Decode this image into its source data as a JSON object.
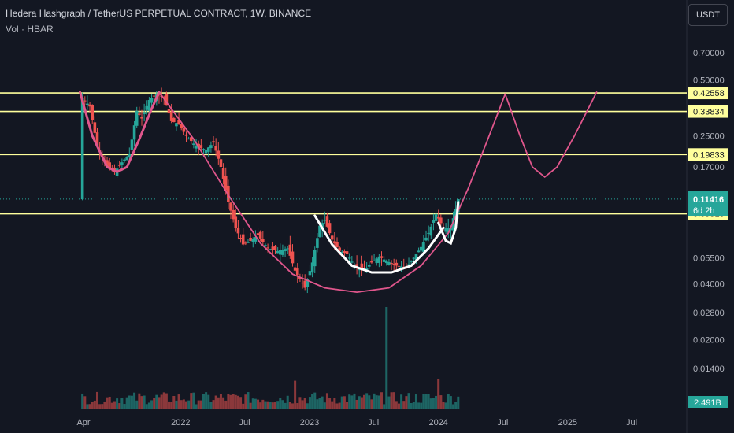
{
  "header": {
    "title": "Hedera Hashgraph / TetherUS PERPETUAL CONTRACT, 1W, BINANCE",
    "volume_label": "Vol · HBAR"
  },
  "currency_button": "USDT",
  "colors": {
    "background": "#131722",
    "up": "#26a69a",
    "down": "#ef5350",
    "level_line": "#ffff9c",
    "curve_pink": "#e0568c",
    "curve_white": "#ffffff"
  },
  "chart_data": {
    "type": "candlestick",
    "scale": "log",
    "ylim": [
      0.0115,
      0.86
    ],
    "y_ticks": [
      "0.70000",
      "0.50000",
      "0.25000",
      "0.17000",
      "0.05500",
      "0.04000",
      "0.02800",
      "0.02000",
      "0.01400"
    ],
    "x_ticks": [
      "Apr",
      "2022",
      "Jul",
      "2023",
      "Jul",
      "2024",
      "Jul",
      "2025",
      "Jul"
    ],
    "x_tick_dates": [
      "2021-04",
      "2022-01",
      "2022-07",
      "2023-01",
      "2023-07",
      "2024-01",
      "2024-07",
      "2025-01",
      "2025-07"
    ],
    "horizontal_levels": [
      {
        "label": "0.42558",
        "value": 0.42558
      },
      {
        "label": "0.33834",
        "value": 0.33834
      },
      {
        "label": "0.19833",
        "value": 0.19833
      },
      {
        "label": "0.09515",
        "value": 0.09515
      }
    ],
    "last_price": {
      "label": "0.11416",
      "value": 0.11416,
      "countdown": "6d 2h"
    },
    "volume_last": "2.491B",
    "price_path": [
      [
        "2021-03-29",
        0.4
      ],
      [
        "2021-04-19",
        0.36
      ],
      [
        "2021-05-10",
        0.22
      ],
      [
        "2021-06-07",
        0.17
      ],
      [
        "2021-06-28",
        0.16
      ],
      [
        "2021-07-19",
        0.18
      ],
      [
        "2021-08-09",
        0.2
      ],
      [
        "2021-08-30",
        0.34
      ],
      [
        "2021-09-13",
        0.31
      ],
      [
        "2021-10-04",
        0.39
      ],
      [
        "2021-10-25",
        0.42
      ],
      [
        "2021-11-15",
        0.4
      ],
      [
        "2021-12-06",
        0.3
      ],
      [
        "2021-12-27",
        0.29
      ],
      [
        "2022-01-17",
        0.25
      ],
      [
        "2022-02-14",
        0.22
      ],
      [
        "2022-03-14",
        0.21
      ],
      [
        "2022-04-04",
        0.23
      ],
      [
        "2022-04-25",
        0.17
      ],
      [
        "2022-05-16",
        0.11
      ],
      [
        "2022-06-06",
        0.08
      ],
      [
        "2022-06-27",
        0.065
      ],
      [
        "2022-07-18",
        0.068
      ],
      [
        "2022-08-08",
        0.073
      ],
      [
        "2022-09-05",
        0.062
      ],
      [
        "2022-10-03",
        0.06
      ],
      [
        "2022-10-31",
        0.062
      ],
      [
        "2022-11-21",
        0.047
      ],
      [
        "2022-12-19",
        0.038
      ],
      [
        "2023-01-09",
        0.052
      ],
      [
        "2023-01-30",
        0.082
      ],
      [
        "2023-02-13",
        0.088
      ],
      [
        "2023-03-06",
        0.069
      ],
      [
        "2023-03-27",
        0.06
      ],
      [
        "2023-04-17",
        0.058
      ],
      [
        "2023-05-08",
        0.05
      ],
      [
        "2023-06-05",
        0.047
      ],
      [
        "2023-06-26",
        0.052
      ],
      [
        "2023-07-17",
        0.056
      ],
      [
        "2023-08-07",
        0.053
      ],
      [
        "2023-09-04",
        0.05
      ],
      [
        "2023-10-02",
        0.049
      ],
      [
        "2023-10-23",
        0.055
      ],
      [
        "2023-11-13",
        0.063
      ],
      [
        "2023-12-04",
        0.075
      ],
      [
        "2023-12-25",
        0.095
      ],
      [
        "2024-01-15",
        0.08
      ],
      [
        "2024-02-05",
        0.08
      ],
      [
        "2024-02-26",
        0.114
      ]
    ],
    "volume_spikes": [
      [
        "2023-08-07",
        1.0
      ],
      [
        "2022-11-21",
        0.28
      ],
      [
        "2024-01-01",
        0.3
      ]
    ]
  }
}
